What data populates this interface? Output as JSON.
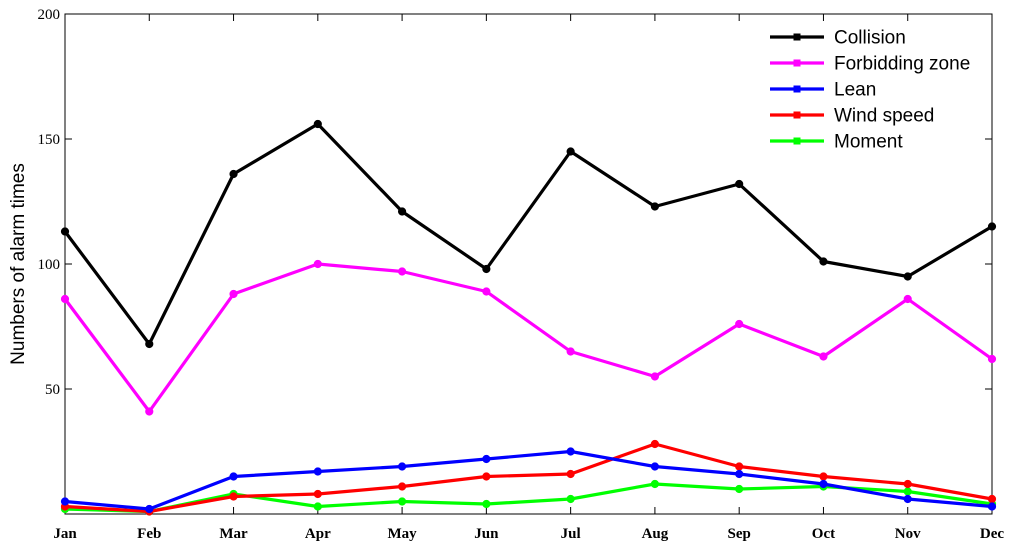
{
  "chart_data": {
    "type": "line",
    "title": "",
    "xlabel": "",
    "ylabel": "Numbers of alarm times",
    "categories": [
      "Jan",
      "Feb",
      "Mar",
      "Apr",
      "May",
      "Jun",
      "Jul",
      "Aug",
      "Sep",
      "Oct",
      "Nov",
      "Dec"
    ],
    "ylim": [
      0,
      200
    ],
    "yticks": [
      50,
      100,
      150,
      200
    ],
    "grid": false,
    "legend_position": "top-right",
    "series": [
      {
        "name": "Collision",
        "color": "#000000",
        "values": [
          113,
          68,
          136,
          156,
          121,
          98,
          145,
          123,
          132,
          101,
          95,
          115
        ]
      },
      {
        "name": "Forbidding zone",
        "color": "#ff00ff",
        "values": [
          86,
          41,
          88,
          100,
          97,
          89,
          65,
          55,
          76,
          63,
          86,
          62
        ]
      },
      {
        "name": "Lean",
        "color": "#0000ff",
        "values": [
          5,
          2,
          15,
          17,
          19,
          22,
          25,
          19,
          16,
          12,
          6,
          3
        ]
      },
      {
        "name": "Wind speed",
        "color": "#ff0000",
        "values": [
          3,
          1,
          7,
          8,
          11,
          15,
          16,
          28,
          19,
          15,
          12,
          6
        ]
      },
      {
        "name": "Moment",
        "color": "#00ff00",
        "values": [
          2,
          1,
          8,
          3,
          5,
          4,
          6,
          12,
          10,
          11,
          9,
          4
        ]
      }
    ]
  }
}
